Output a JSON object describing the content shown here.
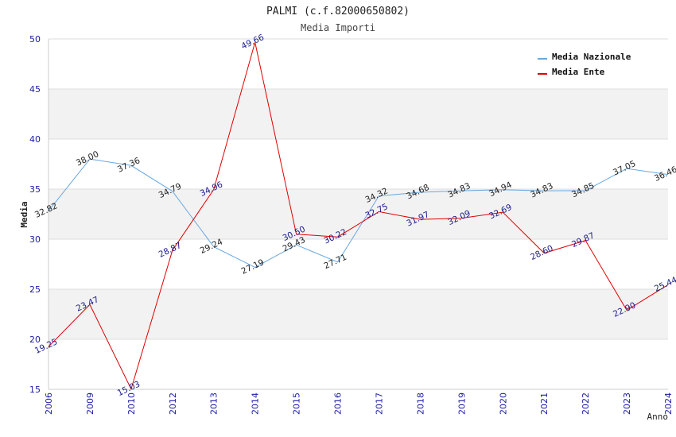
{
  "chart_data": {
    "type": "line",
    "title": "PALMI (c.f.82000650802)",
    "subtitle": "Media Importi",
    "xlabel": "Anno",
    "ylabel": "Media",
    "ylim": [
      15,
      50
    ],
    "yticks": [
      15,
      20,
      25,
      30,
      35,
      40,
      45,
      50
    ],
    "categories": [
      "2006",
      "2009",
      "2010",
      "2012",
      "2013",
      "2014",
      "2015",
      "2016",
      "2017",
      "2018",
      "2019",
      "2020",
      "2021",
      "2022",
      "2023",
      "2024"
    ],
    "grid": true,
    "legend_position": "top-right",
    "series": [
      {
        "name": "Media Nazionale",
        "color": "#6aa8e0",
        "values": [
          32.82,
          38.0,
          37.36,
          34.79,
          29.24,
          27.19,
          29.43,
          27.71,
          34.32,
          34.68,
          34.83,
          34.94,
          34.83,
          34.85,
          37.05,
          36.46
        ],
        "labels": [
          "32.82",
          "38.00",
          "37.36",
          "34.79",
          "29.24",
          "27.19",
          "29.43",
          "27.71",
          "34.32",
          "34.68",
          "34.83",
          "34.94",
          "34.83",
          "34.85",
          "37.05",
          "36.46"
        ]
      },
      {
        "name": "Media Ente",
        "color": "#e00000",
        "values": [
          19.25,
          23.47,
          15.03,
          28.87,
          34.96,
          49.66,
          30.5,
          30.22,
          32.75,
          31.97,
          32.09,
          32.69,
          28.6,
          29.87,
          22.9,
          25.44
        ],
        "labels": [
          "19.25",
          "23.47",
          "15.03",
          "28.87",
          "34.96",
          "49.66",
          "30.50",
          "30.22",
          "32.75",
          "31.97",
          "32.09",
          "32.69",
          "28.60",
          "29.87",
          "22.90",
          "25.44"
        ]
      }
    ]
  }
}
